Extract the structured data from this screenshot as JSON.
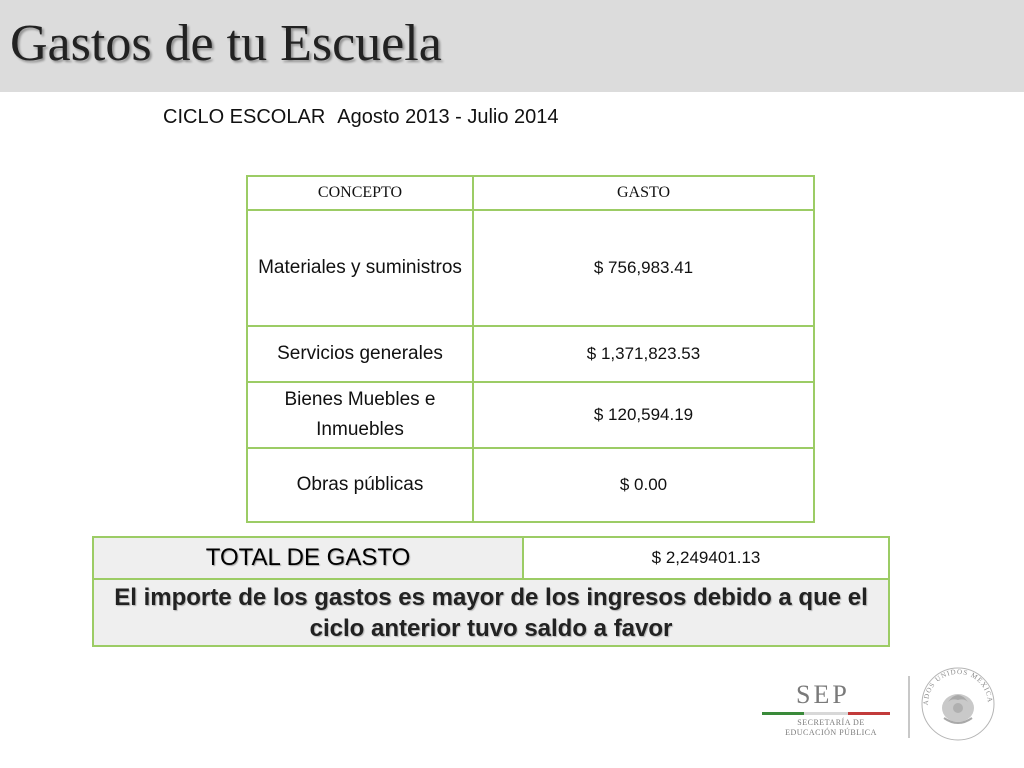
{
  "header": {
    "title": "Gastos de tu Escuela"
  },
  "ciclo": {
    "label": "CICLO ESCOLAR",
    "period": "Agosto 2013 - Julio 2014"
  },
  "table": {
    "columns": [
      "CONCEPTO",
      "GASTO"
    ],
    "rows": [
      {
        "concepto": "Materiales y suministros",
        "gasto": "$ 756,983.41"
      },
      {
        "concepto": "Servicios generales",
        "gasto": "$ 1,371,823.53"
      },
      {
        "concepto": "Bienes Muebles  e Inmuebles",
        "gasto": "$ 120,594.19"
      },
      {
        "concepto": "Obras públicas",
        "gasto": "$ 0.00"
      }
    ]
  },
  "total": {
    "label": "TOTAL DE  GASTO",
    "value": "$ 2,249401.13",
    "note": "El importe de los gastos es mayor de los ingresos debido a que el ciclo anterior  tuvo saldo a favor"
  },
  "logo": {
    "acronym": "SEP",
    "subtitle": "SECRETARÍA DE EDUCACIÓN PÚBLICA",
    "seal_text": "ESTADOS UNIDOS MEXICANOS",
    "colors": {
      "green": "#3a8a3a",
      "white": "#d8d8d8",
      "red": "#c23b3b",
      "gray": "#7a7a7a"
    }
  },
  "colors": {
    "title_bar": "#dcdcdc",
    "table_border": "#9ccc65"
  }
}
